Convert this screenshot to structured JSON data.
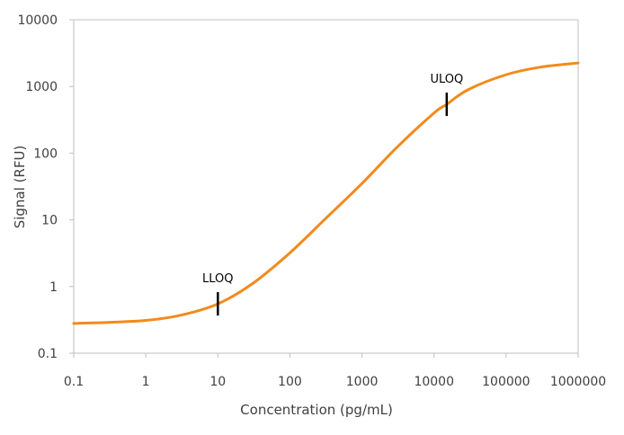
{
  "chart_data": {
    "type": "line",
    "title": "",
    "xlabel": "Concentration (pg/mL)",
    "ylabel": "Signal (RFU)",
    "x_scale": "log",
    "y_scale": "log",
    "xlim": [
      0.1,
      1000000
    ],
    "ylim": [
      0.1,
      10000
    ],
    "x_ticks": [
      "0.1",
      "1",
      "10",
      "100",
      "1000",
      "10000",
      "100000",
      "1000000"
    ],
    "y_ticks": [
      "0.1",
      "1",
      "10",
      "100",
      "1000",
      "10000"
    ],
    "grid": false,
    "legend": "none",
    "series": [
      {
        "color": "#f28a1c",
        "points": [
          [
            0.1,
            0.28
          ],
          [
            0.3,
            0.29
          ],
          [
            1,
            0.31
          ],
          [
            3,
            0.37
          ],
          [
            10,
            0.55
          ],
          [
            30,
            1.1
          ],
          [
            100,
            3.2
          ],
          [
            300,
            10
          ],
          [
            1000,
            35
          ],
          [
            3000,
            120
          ],
          [
            10000,
            400
          ],
          [
            15000,
            540
          ],
          [
            30000,
            900
          ],
          [
            100000,
            1500
          ],
          [
            300000,
            1950
          ],
          [
            1000000,
            2250
          ]
        ]
      }
    ],
    "annotations": [
      {
        "label": "LLOQ",
        "x": 10,
        "y": 0.55
      },
      {
        "label": "ULOQ",
        "x": 15000,
        "y": 540
      }
    ],
    "colors": {
      "line": "#f28a1c",
      "axis": "#bfbfbf",
      "marker": "#000000"
    }
  }
}
